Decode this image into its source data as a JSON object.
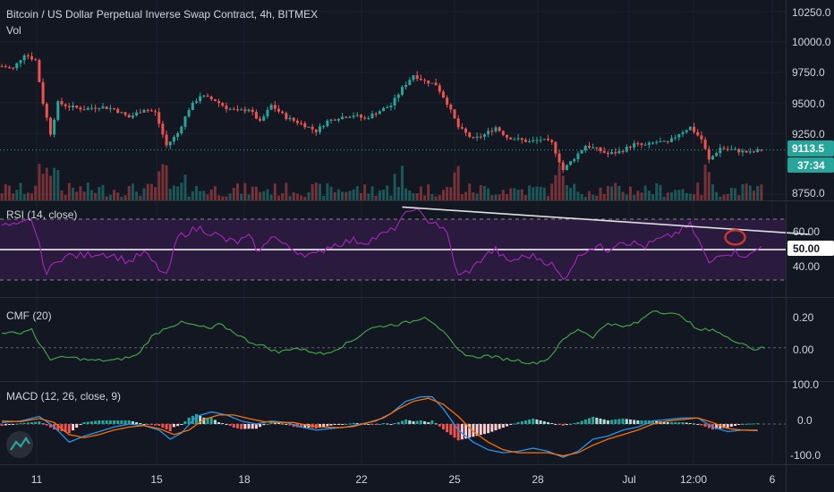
{
  "header": {
    "title": "Bitcoin / US Dollar Perpetual Inverse Swap Contract, 4h, BITMEX",
    "vol_label": "Vol"
  },
  "colors": {
    "background": "#131722",
    "up": "#26a69a",
    "down": "#ef5350",
    "rsi": "#9c27b0",
    "rsi_band": "#2a1a3d",
    "cmf": "#43a047",
    "macd": "#2196f3",
    "signal": "#ff6d00",
    "trendline": "#e0e0e0",
    "circle": "#c0392b",
    "grid": "#1e222d"
  },
  "price_axis": {
    "ticks": [
      "10250.0",
      "10000.0",
      "9750.0",
      "9500.0",
      "9250.0",
      "8750.0"
    ],
    "last_price": "9113.5",
    "countdown": "37:34"
  },
  "rsi_panel": {
    "label": "RSI (14, close)",
    "ticks": [
      "60.00",
      "40.00"
    ],
    "mid_tag": "50.00",
    "upper_band": 70,
    "lower_band": 30
  },
  "cmf_panel": {
    "label": "CMF (20)",
    "ticks": [
      "0.20",
      "0.00"
    ]
  },
  "macd_panel": {
    "label": "MACD (12, 26, close, 9)",
    "ticks": [
      "100.0",
      "0.0",
      "-100.0"
    ]
  },
  "time_axis": {
    "labels": [
      "11",
      "15",
      "18",
      "22",
      "25",
      "28",
      "Jul",
      "12:00",
      "6"
    ]
  },
  "chart_data": {
    "type": "line",
    "price_ylim": [
      8700,
      10300
    ],
    "price_path": [
      [
        0,
        9800
      ],
      [
        3,
        9780
      ],
      [
        6,
        9900
      ],
      [
        9,
        9850
      ],
      [
        11,
        9500
      ],
      [
        13,
        9250
      ],
      [
        15,
        9500
      ],
      [
        18,
        9470
      ],
      [
        22,
        9450
      ],
      [
        26,
        9470
      ],
      [
        30,
        9450
      ],
      [
        34,
        9380
      ],
      [
        38,
        9450
      ],
      [
        41,
        9420
      ],
      [
        44,
        9150
      ],
      [
        47,
        9250
      ],
      [
        50,
        9450
      ],
      [
        53,
        9560
      ],
      [
        57,
        9520
      ],
      [
        60,
        9460
      ],
      [
        63,
        9430
      ],
      [
        66,
        9450
      ],
      [
        69,
        9340
      ],
      [
        72,
        9480
      ],
      [
        76,
        9380
      ],
      [
        80,
        9330
      ],
      [
        84,
        9270
      ],
      [
        87,
        9350
      ],
      [
        90,
        9380
      ],
      [
        94,
        9400
      ],
      [
        97,
        9370
      ],
      [
        100,
        9420
      ],
      [
        104,
        9480
      ],
      [
        107,
        9620
      ],
      [
        110,
        9730
      ],
      [
        113,
        9680
      ],
      [
        116,
        9650
      ],
      [
        119,
        9500
      ],
      [
        122,
        9300
      ],
      [
        126,
        9200
      ],
      [
        129,
        9240
      ],
      [
        132,
        9300
      ],
      [
        135,
        9220
      ],
      [
        138,
        9200
      ],
      [
        141,
        9180
      ],
      [
        144,
        9200
      ],
      [
        147,
        9170
      ],
      [
        150,
        8950
      ],
      [
        153,
        9050
      ],
      [
        156,
        9150
      ],
      [
        159,
        9120
      ],
      [
        162,
        9080
      ],
      [
        165,
        9100
      ],
      [
        169,
        9160
      ],
      [
        172,
        9150
      ],
      [
        175,
        9180
      ],
      [
        178,
        9170
      ],
      [
        181,
        9250
      ],
      [
        184,
        9300
      ],
      [
        187,
        9200
      ],
      [
        189,
        9030
      ],
      [
        192,
        9130
      ],
      [
        196,
        9110
      ],
      [
        200,
        9090
      ],
      [
        203,
        9113.5
      ]
    ],
    "rsi_ylim": [
      20,
      80
    ],
    "rsi_path": [
      [
        0,
        66
      ],
      [
        4,
        65
      ],
      [
        8,
        70
      ],
      [
        12,
        34
      ],
      [
        15,
        44
      ],
      [
        18,
        46
      ],
      [
        22,
        46
      ],
      [
        26,
        48
      ],
      [
        30,
        46
      ],
      [
        34,
        42
      ],
      [
        38,
        48
      ],
      [
        41,
        40
      ],
      [
        44,
        32
      ],
      [
        47,
        58
      ],
      [
        50,
        62
      ],
      [
        53,
        64
      ],
      [
        57,
        60
      ],
      [
        60,
        56
      ],
      [
        63,
        55
      ],
      [
        66,
        58
      ],
      [
        69,
        48
      ],
      [
        72,
        60
      ],
      [
        76,
        52
      ],
      [
        80,
        48
      ],
      [
        84,
        46
      ],
      [
        87,
        52
      ],
      [
        90,
        54
      ],
      [
        94,
        56
      ],
      [
        97,
        55
      ],
      [
        100,
        58
      ],
      [
        104,
        62
      ],
      [
        107,
        70
      ],
      [
        110,
        78
      ],
      [
        113,
        70
      ],
      [
        116,
        68
      ],
      [
        119,
        60
      ],
      [
        122,
        32
      ],
      [
        126,
        38
      ],
      [
        129,
        46
      ],
      [
        132,
        50
      ],
      [
        135,
        42
      ],
      [
        138,
        44
      ],
      [
        141,
        46
      ],
      [
        144,
        44
      ],
      [
        147,
        40
      ],
      [
        150,
        30
      ],
      [
        153,
        42
      ],
      [
        156,
        50
      ],
      [
        159,
        52
      ],
      [
        162,
        50
      ],
      [
        165,
        56
      ],
      [
        169,
        54
      ],
      [
        172,
        52
      ],
      [
        175,
        56
      ],
      [
        178,
        58
      ],
      [
        181,
        62
      ],
      [
        184,
        66
      ],
      [
        187,
        52
      ],
      [
        189,
        40
      ],
      [
        192,
        48
      ],
      [
        196,
        48
      ],
      [
        200,
        46
      ],
      [
        203,
        52
      ]
    ],
    "rsi_trendline": [
      [
        107,
        78
      ],
      [
        216,
        60
      ]
    ],
    "cmf_ylim": [
      -0.2,
      0.3
    ],
    "cmf_path": [
      [
        0,
        0.1
      ],
      [
        4,
        0.09
      ],
      [
        8,
        0.12
      ],
      [
        10,
        0.02
      ],
      [
        13,
        -0.07
      ],
      [
        18,
        -0.06
      ],
      [
        24,
        -0.08
      ],
      [
        30,
        -0.08
      ],
      [
        36,
        -0.05
      ],
      [
        40,
        0.07
      ],
      [
        44,
        0.13
      ],
      [
        48,
        0.16
      ],
      [
        52,
        0.14
      ],
      [
        56,
        0.12
      ],
      [
        58,
        0.15
      ],
      [
        62,
        0.1
      ],
      [
        66,
        0.04
      ],
      [
        70,
        0.01
      ],
      [
        74,
        -0.03
      ],
      [
        78,
        0.0
      ],
      [
        82,
        -0.02
      ],
      [
        86,
        -0.04
      ],
      [
        90,
        0.0
      ],
      [
        94,
        0.05
      ],
      [
        98,
        0.12
      ],
      [
        102,
        0.14
      ],
      [
        106,
        0.15
      ],
      [
        110,
        0.17
      ],
      [
        113,
        0.2
      ],
      [
        116,
        0.15
      ],
      [
        119,
        0.07
      ],
      [
        122,
        -0.02
      ],
      [
        126,
        -0.06
      ],
      [
        130,
        -0.05
      ],
      [
        134,
        -0.07
      ],
      [
        138,
        -0.08
      ],
      [
        142,
        -0.1
      ],
      [
        146,
        -0.07
      ],
      [
        150,
        0.05
      ],
      [
        154,
        0.12
      ],
      [
        158,
        0.07
      ],
      [
        162,
        0.16
      ],
      [
        166,
        0.13
      ],
      [
        170,
        0.16
      ],
      [
        174,
        0.24
      ],
      [
        178,
        0.22
      ],
      [
        182,
        0.2
      ],
      [
        186,
        0.11
      ],
      [
        190,
        0.12
      ],
      [
        194,
        0.06
      ],
      [
        198,
        0.03
      ],
      [
        201,
        -0.01
      ],
      [
        204,
        0.0
      ]
    ],
    "macd_ylim": [
      -130,
      130
    ],
    "macd_path": [
      [
        0,
        5
      ],
      [
        5,
        10
      ],
      [
        10,
        25
      ],
      [
        14,
        -10
      ],
      [
        18,
        -60
      ],
      [
        22,
        -40
      ],
      [
        26,
        -25
      ],
      [
        30,
        -10
      ],
      [
        34,
        0
      ],
      [
        38,
        -5
      ],
      [
        42,
        -20
      ],
      [
        45,
        -50
      ],
      [
        48,
        -30
      ],
      [
        52,
        25
      ],
      [
        56,
        40
      ],
      [
        60,
        30
      ],
      [
        64,
        10
      ],
      [
        68,
        0
      ],
      [
        72,
        10
      ],
      [
        76,
        5
      ],
      [
        80,
        -10
      ],
      [
        84,
        -20
      ],
      [
        88,
        -15
      ],
      [
        92,
        -10
      ],
      [
        96,
        0
      ],
      [
        100,
        10
      ],
      [
        104,
        35
      ],
      [
        108,
        75
      ],
      [
        112,
        90
      ],
      [
        115,
        90
      ],
      [
        118,
        50
      ],
      [
        122,
        -20
      ],
      [
        126,
        -60
      ],
      [
        130,
        -85
      ],
      [
        134,
        -95
      ],
      [
        138,
        -90
      ],
      [
        142,
        -80
      ],
      [
        146,
        -90
      ],
      [
        150,
        -110
      ],
      [
        154,
        -90
      ],
      [
        158,
        -50
      ],
      [
        162,
        -40
      ],
      [
        166,
        -20
      ],
      [
        170,
        -10
      ],
      [
        174,
        10
      ],
      [
        178,
        15
      ],
      [
        182,
        20
      ],
      [
        186,
        20
      ],
      [
        190,
        -10
      ],
      [
        194,
        -25
      ],
      [
        198,
        -20
      ],
      [
        202,
        -20
      ]
    ],
    "signal_path": [
      [
        0,
        10
      ],
      [
        5,
        8
      ],
      [
        10,
        18
      ],
      [
        14,
        5
      ],
      [
        18,
        -35
      ],
      [
        22,
        -45
      ],
      [
        26,
        -35
      ],
      [
        30,
        -20
      ],
      [
        34,
        -10
      ],
      [
        38,
        -5
      ],
      [
        42,
        -15
      ],
      [
        46,
        -35
      ],
      [
        50,
        -20
      ],
      [
        54,
        15
      ],
      [
        58,
        30
      ],
      [
        62,
        30
      ],
      [
        66,
        18
      ],
      [
        70,
        8
      ],
      [
        74,
        5
      ],
      [
        78,
        5
      ],
      [
        82,
        -5
      ],
      [
        86,
        -10
      ],
      [
        90,
        -12
      ],
      [
        94,
        -8
      ],
      [
        98,
        5
      ],
      [
        102,
        20
      ],
      [
        106,
        50
      ],
      [
        110,
        75
      ],
      [
        114,
        85
      ],
      [
        118,
        65
      ],
      [
        122,
        25
      ],
      [
        126,
        -25
      ],
      [
        130,
        -60
      ],
      [
        134,
        -85
      ],
      [
        138,
        -95
      ],
      [
        142,
        -95
      ],
      [
        146,
        -95
      ],
      [
        150,
        -105
      ],
      [
        154,
        -95
      ],
      [
        158,
        -70
      ],
      [
        162,
        -50
      ],
      [
        166,
        -35
      ],
      [
        170,
        -20
      ],
      [
        174,
        0
      ],
      [
        178,
        10
      ],
      [
        182,
        15
      ],
      [
        186,
        20
      ],
      [
        190,
        5
      ],
      [
        194,
        -15
      ],
      [
        198,
        -20
      ],
      [
        202,
        -22
      ]
    ]
  }
}
